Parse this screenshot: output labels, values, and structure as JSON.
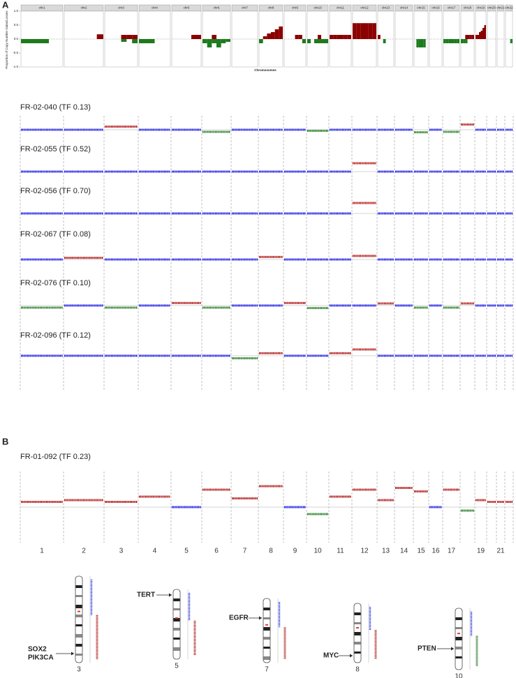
{
  "panel_a": {
    "label": "A",
    "summary": {
      "y_label": "Proportion of Copy Number Gains/Losses",
      "x_label": "Chromosomes",
      "chromosomes": [
        "chr1",
        "chr2",
        "chr3",
        "chr4",
        "chr5",
        "chr6",
        "chr7",
        "chr8",
        "chr9",
        "chr10",
        "chr11",
        "chr12",
        "chr13",
        "chr14",
        "chr15",
        "chr16",
        "chr17",
        "chr18",
        "chr19",
        "chr20",
        "chr21",
        "chr22"
      ],
      "ylim": [
        -1,
        1
      ],
      "yticks": [
        {
          "value": -1,
          "label": "-1.0"
        },
        {
          "value": -0.5,
          "label": "-0.5"
        },
        {
          "value": 0,
          "label": "0.0"
        },
        {
          "value": 0.5,
          "label": "0.5"
        },
        {
          "value": 1,
          "label": "1.0"
        }
      ],
      "gain_color": "#8b0000",
      "loss_color": "#1e7a1e",
      "gains": [
        [
          0,
          0,
          0,
          0,
          0,
          0
        ],
        [
          0,
          0,
          0,
          0,
          0,
          0.17
        ],
        [
          0,
          0,
          0,
          0.15,
          0.15,
          0.15
        ],
        [
          0,
          0,
          0,
          0,
          0,
          0
        ],
        [
          0,
          0,
          0,
          0,
          0.15,
          0.15
        ],
        [
          0,
          0,
          0.15,
          0,
          0,
          0
        ],
        [
          0,
          0,
          0,
          0,
          0,
          0
        ],
        [
          0,
          0.1,
          0.2,
          0.25,
          0.35,
          0.45
        ],
        [
          0,
          0,
          0,
          0.15,
          0.15,
          0
        ],
        [
          0,
          0,
          0,
          0.15,
          0,
          0
        ],
        [
          0.15,
          0.15,
          0.15,
          0.15,
          0.15,
          0.15
        ],
        [
          0.57,
          0.57,
          0.57,
          0.57,
          0.57,
          0.57
        ],
        [
          0.15,
          0,
          0,
          0,
          0,
          0
        ],
        [
          0,
          0,
          0,
          0,
          0,
          0
        ],
        [
          0,
          0,
          0,
          0,
          0,
          0
        ],
        [
          0,
          0,
          0,
          0,
          0,
          0
        ],
        [
          0,
          0,
          0,
          0,
          0,
          0
        ],
        [
          0,
          0,
          0.15,
          0.15,
          0.15,
          0.15
        ],
        [
          0.15,
          0.15,
          0.25,
          0.3,
          0.4,
          0.5
        ],
        [
          0,
          0,
          0,
          0,
          0,
          0
        ],
        [
          0,
          0,
          0,
          0,
          0,
          0
        ],
        [
          0,
          0,
          0,
          0,
          0,
          0
        ]
      ],
      "losses": [
        [
          -0.15,
          -0.15,
          -0.15,
          -0.15,
          0,
          0
        ],
        [
          0,
          0,
          0,
          0,
          0,
          0
        ],
        [
          0,
          0,
          0,
          -0.1,
          0,
          -0.15
        ],
        [
          -0.15,
          -0.15,
          -0.15,
          0,
          0,
          0
        ],
        [
          0,
          0,
          0,
          0,
          0,
          0
        ],
        [
          -0.15,
          -0.3,
          -0.15,
          -0.3,
          -0.15,
          -0.1
        ],
        [
          0,
          0,
          0,
          0,
          0,
          0
        ],
        [
          -0.15,
          0,
          0,
          0,
          0,
          0
        ],
        [
          0,
          0,
          0,
          0,
          0,
          -0.15
        ],
        [
          -0.15,
          0,
          -0.15,
          -0.15,
          -0.15,
          -0.15
        ],
        [
          0,
          0,
          0,
          0,
          0,
          0
        ],
        [
          0,
          0,
          0,
          0,
          0,
          0
        ],
        [
          0,
          0,
          -0.15,
          0,
          0,
          0
        ],
        [
          0,
          0,
          0,
          0,
          0,
          0
        ],
        [
          0,
          -0.3,
          -0.3,
          -0.3,
          -0.3,
          0
        ],
        [
          0,
          0,
          0,
          0,
          0,
          0
        ],
        [
          -0.15,
          -0.15,
          -0.15,
          -0.15,
          -0.15,
          -0.15
        ],
        [
          -0.15,
          -0.15,
          -0.15,
          0,
          0,
          0
        ],
        [
          0,
          0,
          0,
          0,
          0,
          0
        ],
        [
          0,
          0,
          0,
          0,
          0,
          0
        ],
        [
          0,
          0,
          0,
          0,
          0,
          0
        ],
        [
          0,
          0,
          0,
          0,
          -0.15,
          -0.15
        ]
      ]
    },
    "track_ylim": [
      -1,
      1
    ],
    "colors": {
      "gain": "#b01010",
      "loss": "#1e7a1e",
      "neutral": "#1a1aee"
    },
    "samples": [
      {
        "name": "FR-02-040 (TF 0.13)",
        "levels": [
          0,
          0,
          0.15,
          0,
          0,
          -0.1,
          0,
          0,
          0,
          -0.05,
          0,
          0,
          0,
          0,
          -0.12,
          0,
          -0.1,
          0.25,
          0,
          0,
          0,
          0
        ]
      },
      {
        "name": "FR-02-055 (TF 0.52)",
        "levels": [
          0,
          0,
          0,
          0,
          0,
          0,
          0,
          0,
          0,
          0,
          0,
          0.4,
          0,
          0,
          0,
          0,
          0,
          0,
          0,
          0,
          0,
          0
        ]
      },
      {
        "name": "FR-02-056 (TF 0.70)",
        "levels": [
          0,
          0,
          0,
          0,
          0,
          0,
          0,
          0,
          0,
          0,
          0,
          0.5,
          0,
          0,
          0,
          0,
          0,
          0,
          0,
          0,
          0,
          0
        ]
      },
      {
        "name": "FR-02-067 (TF 0.08)",
        "levels": [
          0,
          0.08,
          0,
          0,
          0,
          0,
          0,
          0.12,
          0,
          0,
          0,
          0.17,
          0,
          0,
          0,
          0,
          0,
          0,
          0,
          0,
          0,
          0
        ]
      },
      {
        "name": "FR-02-076 (TF 0.10)",
        "levels": [
          -0.1,
          0,
          -0.1,
          0,
          0.12,
          -0.1,
          0,
          0,
          0.12,
          -0.12,
          0,
          0,
          0.1,
          0,
          -0.1,
          0,
          -0.1,
          0.1,
          0,
          0,
          0,
          0
        ]
      },
      {
        "name": "FR-02-096 (TF 0.12)",
        "levels": [
          0,
          0,
          0,
          0,
          0,
          0,
          -0.12,
          0.12,
          0,
          0,
          0.12,
          0.3,
          0,
          0,
          0,
          0,
          0,
          0,
          0,
          0,
          0,
          0
        ]
      }
    ]
  },
  "panel_b": {
    "label": "B",
    "sample": "FR-01-092 (TF 0.23)",
    "ylim": [
      -1,
      1
    ],
    "categories": [
      "1",
      "2",
      "3",
      "4",
      "5",
      "6",
      "7",
      "8",
      "9",
      "10",
      "11",
      "12",
      "13",
      "14",
      "15",
      "16",
      "17",
      null,
      "19",
      null,
      "21",
      null
    ],
    "levels": [
      0.15,
      0.2,
      0.15,
      0.3,
      0,
      0.5,
      0.25,
      0.6,
      0,
      -0.2,
      0.3,
      0.5,
      0.2,
      0.55,
      0.45,
      0,
      0.5,
      -0.1,
      0.2,
      0.15,
      0.15,
      0.15
    ],
    "ideograms": [
      {
        "chromosome": "3",
        "genes": [
          "SOX2",
          "PIK3CA"
        ],
        "color": "#d01010"
      },
      {
        "chromosome": "5",
        "genes": [
          "TERT"
        ],
        "color": "#d01010"
      },
      {
        "chromosome": "7",
        "genes": [
          "EGFR"
        ],
        "color": "#d01010"
      },
      {
        "chromosome": "8",
        "genes": [
          "MYC"
        ],
        "color": "#d01010"
      },
      {
        "chromosome": "10",
        "genes": [
          "PTEN"
        ],
        "color": "#1e6e1e"
      }
    ]
  }
}
